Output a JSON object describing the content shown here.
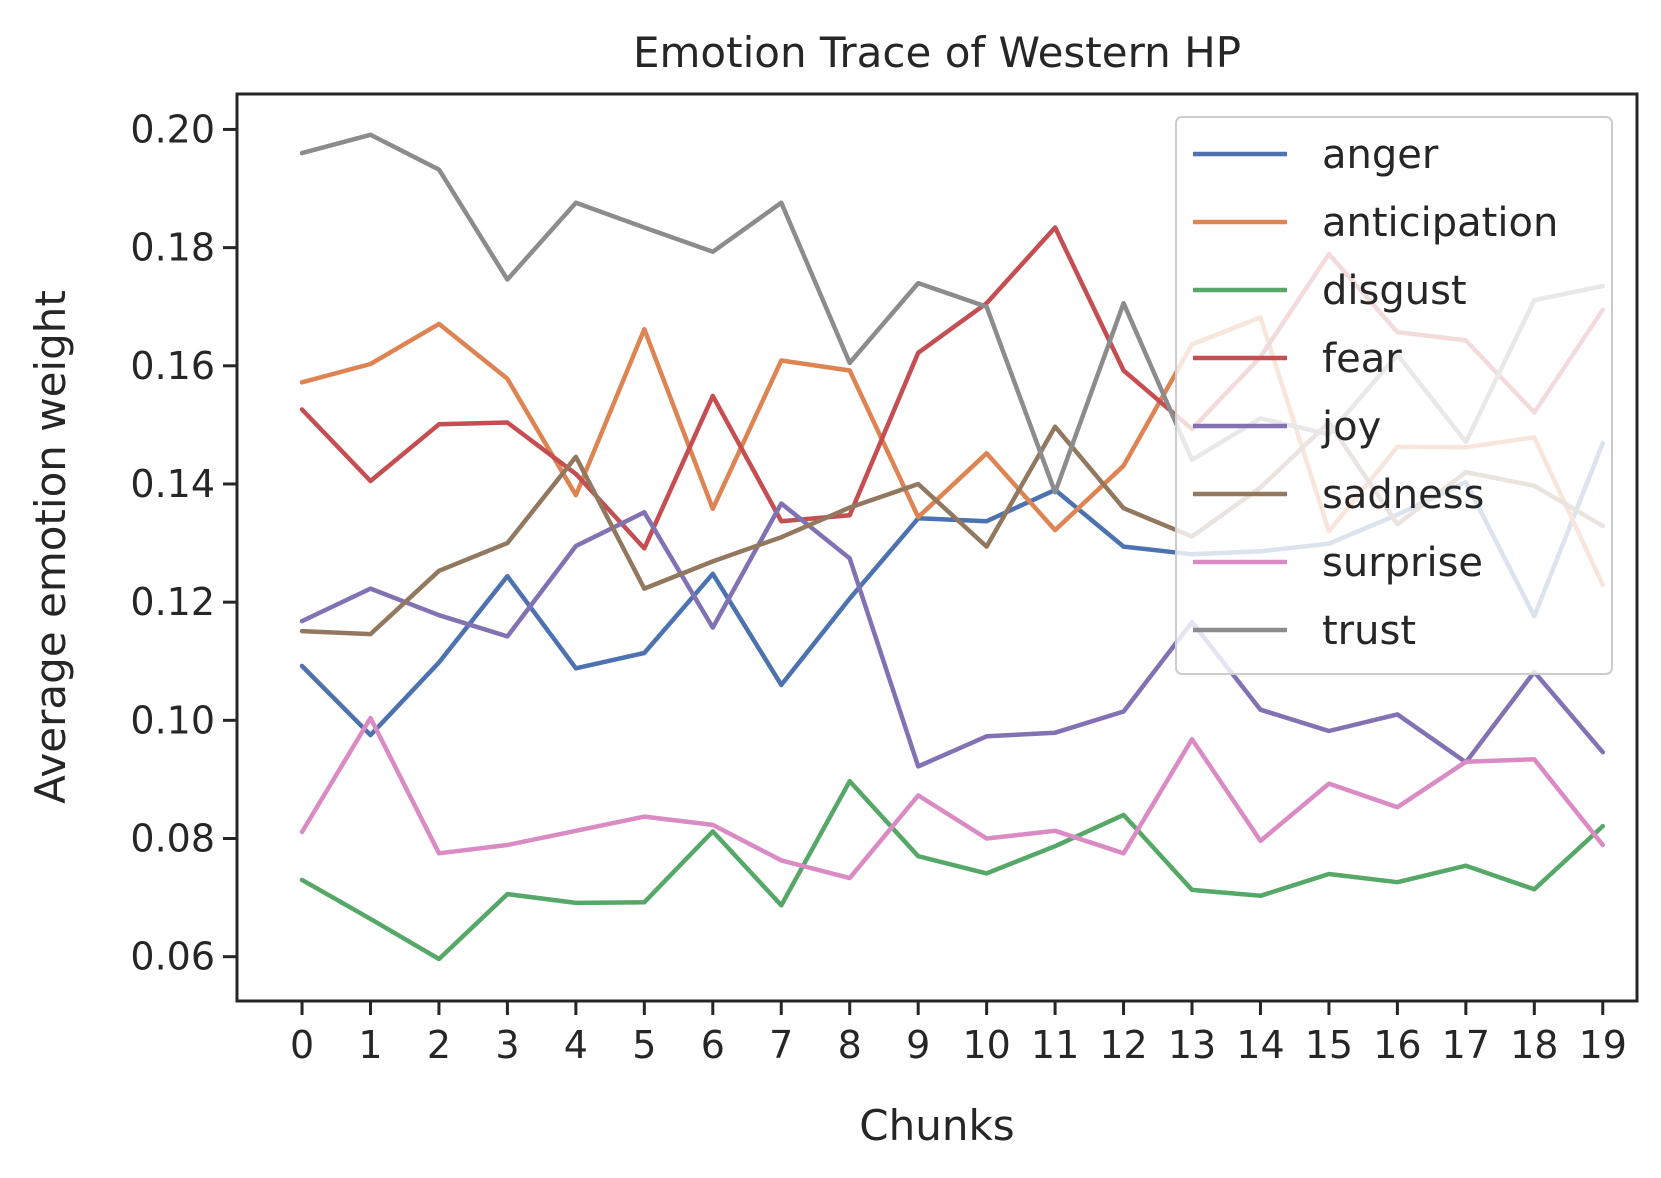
{
  "chart_data": {
    "type": "line",
    "title": "Emotion Trace of Western HP",
    "xlabel": "Chunks",
    "ylabel": "Average emotion weight",
    "x": [
      0,
      1,
      2,
      3,
      4,
      5,
      6,
      7,
      8,
      9,
      10,
      11,
      12,
      13,
      14,
      15,
      16,
      17,
      18,
      19
    ],
    "xticks": [
      "0",
      "1",
      "2",
      "3",
      "4",
      "5",
      "6",
      "7",
      "8",
      "9",
      "10",
      "11",
      "12",
      "13",
      "14",
      "15",
      "16",
      "17",
      "18",
      "19"
    ],
    "yticks": [
      "0.06",
      "0.08",
      "0.10",
      "0.12",
      "0.14",
      "0.16",
      "0.18",
      "0.20"
    ],
    "ytick_values": [
      0.06,
      0.08,
      0.1,
      0.12,
      0.14,
      0.16,
      0.18,
      0.2
    ],
    "xlim": [
      -0.95,
      19.5
    ],
    "ylim": [
      0.0525,
      0.206
    ],
    "grid": false,
    "legend_position": "top-right",
    "series": [
      {
        "name": "anger",
        "color": "#4c72b0",
        "values": [
          0.1092,
          0.0975,
          0.1098,
          0.1244,
          0.1088,
          0.1114,
          0.1248,
          0.106,
          0.1206,
          0.1342,
          0.1337,
          0.139,
          0.1294,
          0.1281,
          0.1286,
          0.1299,
          0.1348,
          0.1403,
          0.1176,
          0.1469
        ]
      },
      {
        "name": "anticipation",
        "color": "#dd8452",
        "values": [
          0.1572,
          0.1603,
          0.1671,
          0.1578,
          0.1381,
          0.1662,
          0.1358,
          0.1609,
          0.1592,
          0.1344,
          0.1452,
          0.1322,
          0.1431,
          0.1636,
          0.1682,
          0.132,
          0.1463,
          0.1462,
          0.1479,
          0.1229
        ]
      },
      {
        "name": "disgust",
        "color": "#55a868",
        "values": [
          0.073,
          0.0664,
          0.0596,
          0.0706,
          0.0691,
          0.0692,
          0.0812,
          0.0687,
          0.0897,
          0.077,
          0.0741,
          0.0787,
          0.084,
          0.0713,
          0.0703,
          0.074,
          0.0726,
          0.0754,
          0.0714,
          0.0821
        ]
      },
      {
        "name": "fear",
        "color": "#c44e52",
        "values": [
          0.1526,
          0.1405,
          0.1501,
          0.1504,
          0.1417,
          0.1291,
          0.1549,
          0.1337,
          0.1347,
          0.1622,
          0.1706,
          0.1834,
          0.1592,
          0.1493,
          0.1615,
          0.1789,
          0.1657,
          0.1643,
          0.1521,
          0.1695
        ]
      },
      {
        "name": "joy",
        "color": "#8172b3",
        "values": [
          0.1168,
          0.1223,
          0.1178,
          0.1142,
          0.1295,
          0.1352,
          0.1157,
          0.1367,
          0.1274,
          0.0922,
          0.0973,
          0.0979,
          0.1015,
          0.1166,
          0.1018,
          0.0982,
          0.101,
          0.0929,
          0.1082,
          0.0946
        ]
      },
      {
        "name": "sadness",
        "color": "#937860",
        "values": [
          0.1151,
          0.1146,
          0.1253,
          0.13,
          0.1446,
          0.1223,
          0.1269,
          0.131,
          0.136,
          0.14,
          0.1294,
          0.1497,
          0.1359,
          0.1311,
          0.1394,
          0.1504,
          0.1332,
          0.142,
          0.1397,
          0.1329
        ]
      },
      {
        "name": "surprise",
        "color": "#da8bc3",
        "values": [
          0.0811,
          0.1004,
          0.0775,
          0.0789,
          0.0813,
          0.0837,
          0.0823,
          0.0763,
          0.0733,
          0.0873,
          0.08,
          0.0813,
          0.0775,
          0.0968,
          0.0796,
          0.0893,
          0.0853,
          0.093,
          0.0934,
          0.0789
        ]
      },
      {
        "name": "trust",
        "color": "#8c8c8c",
        "values": [
          0.196,
          0.1991,
          0.1932,
          0.1746,
          0.1876,
          0.1834,
          0.1793,
          0.1876,
          0.1605,
          0.174,
          0.17,
          0.1386,
          0.1706,
          0.1441,
          0.1511,
          0.1484,
          0.1619,
          0.1471,
          0.1711,
          0.1735
        ]
      }
    ]
  }
}
